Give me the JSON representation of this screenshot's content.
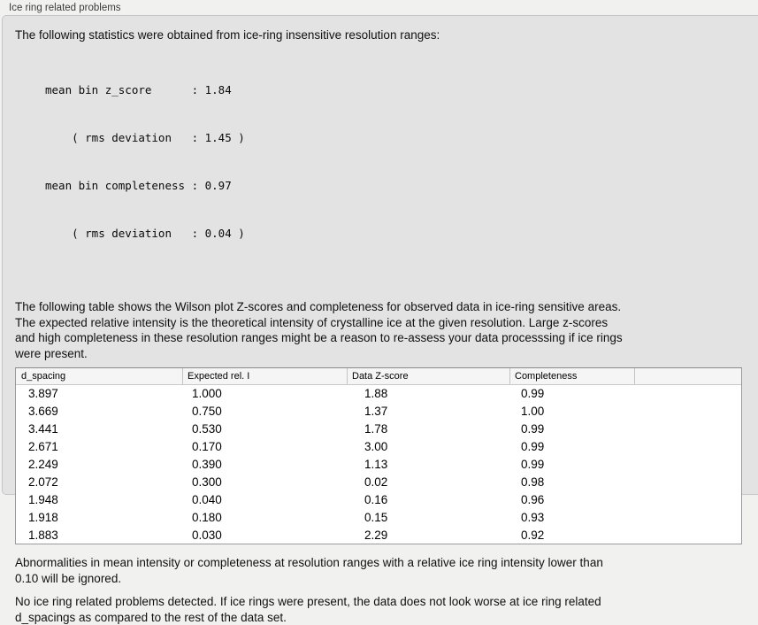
{
  "panel": {
    "title": "Ice ring related problems"
  },
  "intro": {
    "text": "The following statistics were obtained from ice-ring insensitive resolution ranges:"
  },
  "stats_block": {
    "lines": [
      "mean bin z_score      : 1.84",
      "    ( rms deviation   : 1.45 )",
      "mean bin completeness : 0.97",
      "    ( rms deviation   : 0.04 )"
    ]
  },
  "table_note": {
    "lines": [
      "The following table shows the Wilson plot Z-scores and completeness for observed data in ice-ring sensitive areas.",
      "The expected relative intensity is the theoretical intensity of crystalline ice at the given resolution. Large z-scores",
      "and high completeness in these resolution ranges might be a reason to re-assess your data processsing if ice rings",
      "were present."
    ]
  },
  "table": {
    "columns": [
      "d_spacing",
      "Expected rel. I",
      "Data Z-score",
      "Completeness"
    ],
    "rows": [
      [
        "3.897",
        "1.000",
        "1.88",
        "0.99"
      ],
      [
        "3.669",
        "0.750",
        "1.37",
        "1.00"
      ],
      [
        "3.441",
        "0.530",
        "1.78",
        "0.99"
      ],
      [
        "2.671",
        "0.170",
        "3.00",
        "0.99"
      ],
      [
        "2.249",
        "0.390",
        "1.13",
        "0.99"
      ],
      [
        "2.072",
        "0.300",
        "0.02",
        "0.98"
      ],
      [
        "1.948",
        "0.040",
        "0.16",
        "0.96"
      ],
      [
        "1.918",
        "0.180",
        "0.15",
        "0.93"
      ],
      [
        "1.883",
        "0.030",
        "2.29",
        "0.92"
      ]
    ]
  },
  "ignore_note": {
    "lines": [
      "Abnormalities in mean intensity or completeness at resolution ranges with a relative ice ring intensity lower than",
      "0.10 will be ignored."
    ]
  },
  "conclusion": {
    "lines": [
      "No ice ring related problems detected. If ice rings were present, the data does not look worse at ice ring related",
      "d_spacings as compared to the rest of the data set."
    ]
  },
  "colors": {
    "page_background": "#f1f1f0",
    "groupbox_background": "#e3e3e3",
    "table_header_background": "#f5f5f5",
    "table_background": "#ffffff",
    "text": "#101010"
  }
}
